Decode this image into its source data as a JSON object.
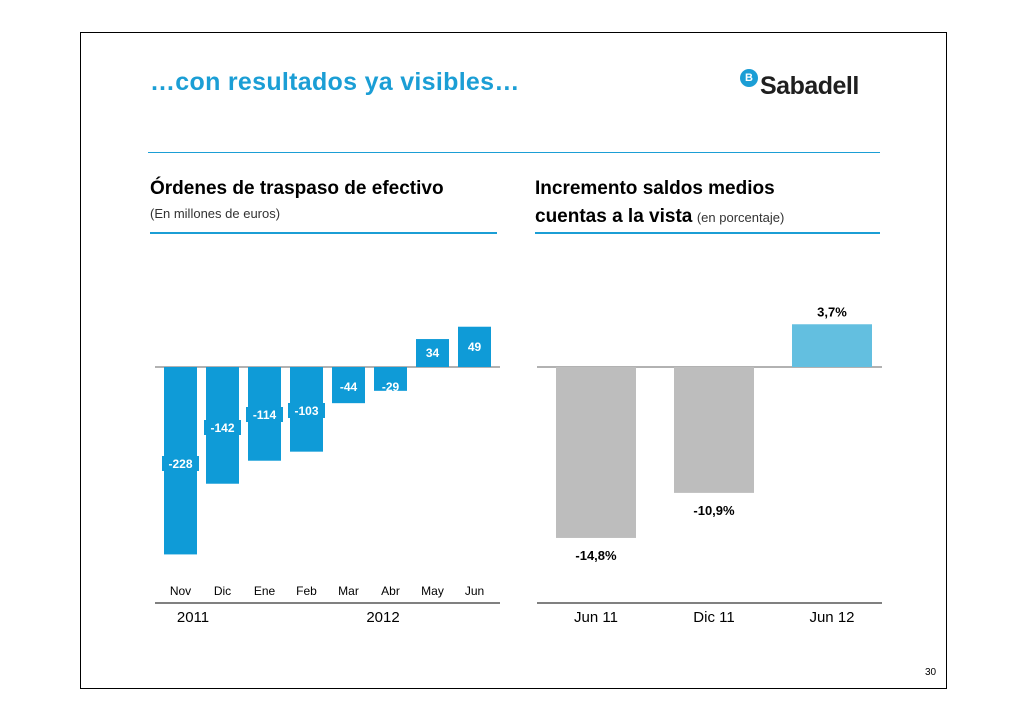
{
  "title": "…con resultados ya visibles…",
  "logo": {
    "badge": "B",
    "name": "Sabadell"
  },
  "colors": {
    "accent": "#1b9ed5",
    "bar_blue": "#0f9bd7",
    "bar_light_blue": "#63bfe0",
    "bar_grey": "#bdbdbd"
  },
  "left_panel": {
    "heading": "Órdenes de traspaso de efectivo",
    "subheading": "(En millones de euros)"
  },
  "right_panel": {
    "heading": "Incremento saldos medios",
    "heading2": "cuentas a la vista",
    "subheading": "(en porcentaje)"
  },
  "chart_data": [
    {
      "type": "bar",
      "title": "Órdenes de traspaso de efectivo",
      "subtitle": "(En millones de euros)",
      "categories": [
        "Nov",
        "Dic",
        "Ene",
        "Feb",
        "Mar",
        "Abr",
        "May",
        "Jun"
      ],
      "values": [
        -228,
        -142,
        -114,
        -103,
        -44,
        -29,
        34,
        49
      ],
      "labels": [
        "-228",
        "-142",
        "-114",
        "-103",
        "-44",
        "-29",
        "34",
        "49"
      ],
      "groups": [
        {
          "label": "2011"
        },
        {
          "label": "2012"
        }
      ],
      "color": "#0f9bd7"
    },
    {
      "type": "bar",
      "title": "Incremento saldos medios cuentas a la vista",
      "subtitle": "(en porcentaje)",
      "categories": [
        "Jun 11",
        "Dic 11",
        "Jun 12"
      ],
      "values": [
        -14.8,
        -10.9,
        3.7
      ],
      "labels": [
        "-14,8%",
        "-10,9%",
        "3,7%"
      ],
      "colors": [
        "#bdbdbd",
        "#bdbdbd",
        "#63bfe0"
      ]
    }
  ],
  "page_number": "30"
}
